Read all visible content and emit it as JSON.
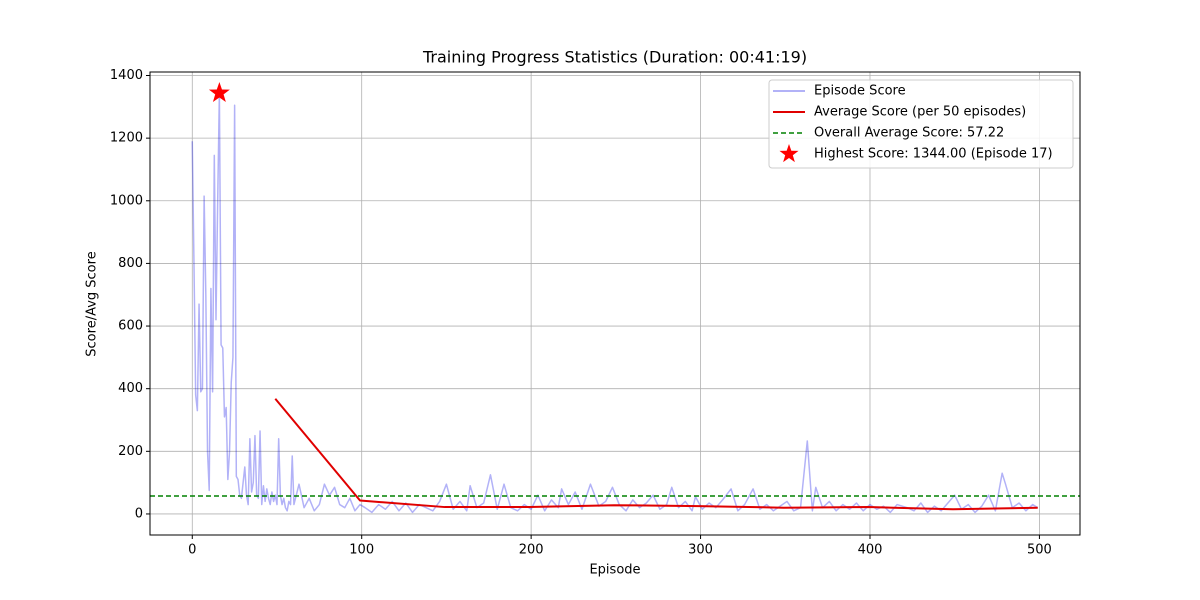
{
  "chart_data": {
    "type": "line",
    "title": "Training Progress Statistics (Duration: 00:41:19)",
    "x_label": "Episode",
    "y_label": "Score/Avg Score",
    "xlim": [
      -24.95,
      523.95
    ],
    "xticks": [
      0,
      100,
      200,
      300,
      400,
      500
    ],
    "ylim": [
      -67.2,
      1411.2
    ],
    "yticks": [
      0,
      200,
      400,
      600,
      800,
      1000,
      1200,
      1400
    ],
    "grid": true,
    "legend": "upper right",
    "series": [
      {
        "name": "Episode Score",
        "kind": "line",
        "color": "rgba(0,0,230,0.3)",
        "x": [
          0,
          1,
          2,
          3,
          4,
          5,
          6,
          7,
          8,
          9,
          10,
          11,
          12,
          13,
          14,
          15,
          16,
          17,
          18,
          19,
          20,
          21,
          22,
          23,
          24,
          25,
          26,
          27,
          28,
          29,
          30,
          31,
          32,
          33,
          34,
          35,
          36,
          37,
          38,
          39,
          40,
          41,
          42,
          43,
          44,
          45,
          46,
          47,
          48,
          49,
          50,
          51,
          52,
          53,
          54,
          55,
          56,
          57,
          58,
          59,
          60,
          63,
          66,
          69,
          72,
          75,
          78,
          81,
          84,
          87,
          90,
          93,
          96,
          99,
          102,
          106,
          110,
          114,
          118,
          122,
          126,
          130,
          134,
          138,
          142,
          146,
          150,
          154,
          158,
          162,
          164,
          168,
          172,
          176,
          180,
          184,
          188,
          192,
          196,
          200,
          204,
          208,
          212,
          216,
          218,
          222,
          226,
          230,
          235,
          240,
          244,
          248,
          252,
          256,
          260,
          264,
          268,
          272,
          276,
          280,
          283,
          287,
          291,
          295,
          297,
          301,
          305,
          309,
          313,
          318,
          322,
          326,
          331,
          335,
          339,
          343,
          347,
          351,
          355,
          359,
          363,
          366,
          368,
          372,
          376,
          380,
          384,
          388,
          392,
          396,
          400,
          404,
          408,
          412,
          416,
          422,
          426,
          430,
          434,
          438,
          442,
          446,
          450,
          454,
          458,
          462,
          466,
          470,
          474,
          478,
          480,
          484,
          488,
          492,
          496,
          499
        ],
        "values": [
          1190,
          800,
          380,
          330,
          670,
          390,
          400,
          1015,
          700,
          200,
          75,
          720,
          390,
          1145,
          620,
          1000,
          1344,
          540,
          530,
          310,
          340,
          110,
          200,
          420,
          500,
          1305,
          120,
          110,
          60,
          50,
          100,
          150,
          60,
          30,
          240,
          70,
          100,
          250,
          60,
          50,
          265,
          30,
          90,
          40,
          80,
          50,
          30,
          70,
          40,
          60,
          30,
          240,
          60,
          30,
          50,
          20,
          10,
          40,
          30,
          185,
          30,
          95,
          20,
          50,
          10,
          30,
          95,
          60,
          85,
          30,
          20,
          50,
          10,
          30,
          20,
          5,
          30,
          15,
          40,
          10,
          35,
          5,
          30,
          20,
          10,
          40,
          95,
          15,
          40,
          10,
          90,
          20,
          35,
          125,
          15,
          95,
          20,
          10,
          30,
          15,
          60,
          10,
          45,
          20,
          80,
          30,
          70,
          15,
          95,
          25,
          40,
          85,
          30,
          10,
          45,
          20,
          35,
          60,
          15,
          30,
          85,
          20,
          40,
          10,
          55,
          15,
          35,
          20,
          45,
          80,
          10,
          30,
          80,
          15,
          30,
          10,
          25,
          40,
          10,
          20,
          233,
          10,
          85,
          20,
          40,
          10,
          30,
          15,
          35,
          10,
          30,
          15,
          25,
          5,
          30,
          20,
          10,
          35,
          5,
          25,
          10,
          35,
          60,
          15,
          30,
          5,
          25,
          60,
          10,
          130,
          95,
          20,
          35,
          10,
          30,
          20
        ]
      },
      {
        "name": "Average Score (per 50 episodes)",
        "kind": "line",
        "color": "#e00000",
        "x": [
          49,
          99,
          149,
          199,
          249,
          299,
          349,
          399,
          449,
          499
        ],
        "values": [
          368,
          43,
          22,
          22,
          28,
          25,
          20,
          22,
          15,
          20
        ]
      },
      {
        "name": "Overall Average Score: 57.22",
        "kind": "hline",
        "color": "#008000",
        "values": [
          57.22
        ]
      },
      {
        "name": "Highest Score: 1344.00 (Episode 17)",
        "kind": "star",
        "color": "#ff0000",
        "x": [
          16
        ],
        "values": [
          1344
        ]
      }
    ]
  }
}
